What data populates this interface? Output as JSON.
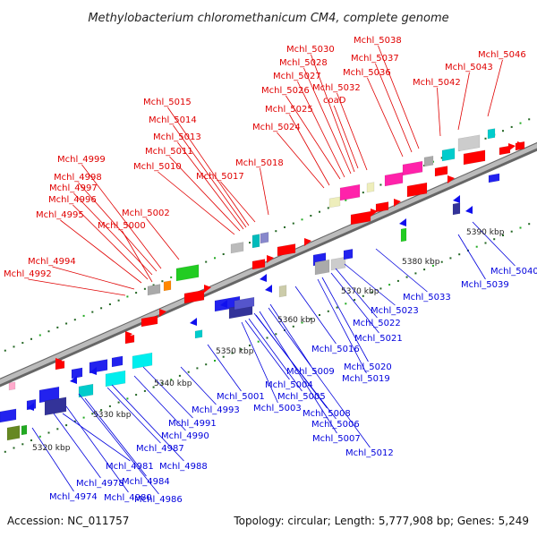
{
  "title": "Methylobacterium chloromethanicum CM4, complete genome",
  "footer": {
    "accession": "Accession: NC_011757",
    "summary": "Topology: circular; Length: 5,777,908 bp; Genes: 5,249"
  },
  "colors": {
    "forward_label": "#e00000",
    "reverse_label": "#0000dd",
    "backbone": "#999999",
    "forward_arrow": "#ff0000",
    "reverse_arrow": "#1010ee"
  },
  "scale_ticks": [
    "5320 kbp",
    "5330 kbp",
    "5340 kbp",
    "5350 kbp",
    "5360 kbp",
    "5370 kbp",
    "5380 kbp",
    "5390 kbp"
  ],
  "forward_genes": [
    "Mchl_4992",
    "Mchl_4994",
    "Mchl_4995",
    "Mchl_4996",
    "Mchl_4997",
    "Mchl_4998",
    "Mchl_4999",
    "Mchl_5000",
    "Mchl_5002",
    "Mchl_5010",
    "Mchl_5011",
    "Mchl_5013",
    "Mchl_5014",
    "Mchl_5015",
    "Mchl_5017",
    "Mchl_5018",
    "Mchl_5024",
    "Mchl_5025",
    "Mchl_5026",
    "coaD",
    "Mchl_5027",
    "Mchl_5032",
    "Mchl_5028",
    "Mchl_5030",
    "Mchl_5036",
    "Mchl_5037",
    "Mchl_5038",
    "Mchl_5042",
    "Mchl_5043",
    "Mchl_5046"
  ],
  "reverse_genes": [
    "Mchl_4974",
    "Mchl_4978",
    "Mchl_4980",
    "Mchl_4981",
    "Mchl_4984",
    "Mchl_4986",
    "Mchl_4987",
    "Mchl_4988",
    "Mchl_4990",
    "Mchl_4991",
    "Mchl_4993",
    "Mchl_5001",
    "Mchl_5003",
    "Mchl_5004",
    "Mchl_5005",
    "Mchl_5006",
    "Mchl_5007",
    "Mchl_5008",
    "Mchl_5009",
    "Mchl_5012",
    "Mchl_5016",
    "Mchl_5019",
    "Mchl_5020",
    "Mchl_5021",
    "Mchl_5022",
    "Mchl_5023",
    "Mchl_5033",
    "Mchl_5039",
    "Mchl_5040"
  ]
}
